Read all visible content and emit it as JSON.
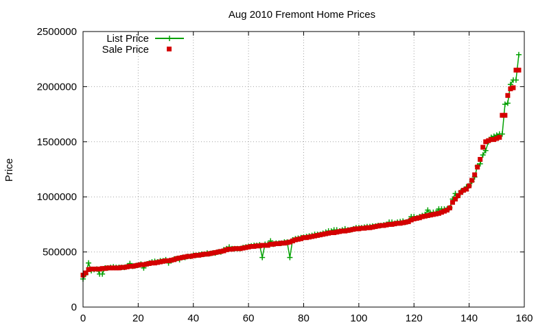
{
  "chart_data": {
    "type": "line",
    "title": "Aug 2010 Fremont Home Prices",
    "xlabel": "",
    "ylabel": "Price",
    "xlim": [
      0,
      160
    ],
    "ylim": [
      0,
      2500000
    ],
    "x_ticks": [
      0,
      20,
      40,
      60,
      80,
      100,
      120,
      140,
      160
    ],
    "y_ticks": [
      0,
      500000,
      1000000,
      1500000,
      2000000,
      2500000
    ],
    "grid": true,
    "legend_position": "top-left",
    "series": [
      {
        "name": "List Price",
        "style": "line-with-plus",
        "color": "#00a000",
        "x": [
          0,
          1,
          2,
          3,
          4,
          5,
          6,
          7,
          8,
          9,
          10,
          11,
          12,
          13,
          14,
          15,
          16,
          17,
          18,
          19,
          20,
          21,
          22,
          23,
          24,
          25,
          26,
          27,
          28,
          29,
          30,
          31,
          32,
          33,
          34,
          35,
          36,
          37,
          38,
          39,
          40,
          41,
          42,
          43,
          44,
          45,
          46,
          47,
          48,
          49,
          50,
          51,
          52,
          53,
          54,
          55,
          56,
          57,
          58,
          59,
          60,
          61,
          62,
          63,
          64,
          65,
          66,
          67,
          68,
          69,
          70,
          71,
          72,
          73,
          74,
          75,
          76,
          77,
          78,
          79,
          80,
          81,
          82,
          83,
          84,
          85,
          86,
          87,
          88,
          89,
          90,
          91,
          92,
          93,
          94,
          95,
          96,
          97,
          98,
          99,
          100,
          101,
          102,
          103,
          104,
          105,
          106,
          107,
          108,
          109,
          110,
          111,
          112,
          113,
          114,
          115,
          116,
          117,
          118,
          119,
          120,
          121,
          122,
          123,
          124,
          125,
          126,
          127,
          128,
          129,
          130,
          131,
          132,
          133,
          134,
          135,
          136,
          137,
          138,
          139,
          140,
          141,
          142,
          143,
          144,
          145,
          146,
          147,
          148,
          149,
          150,
          151,
          152,
          153,
          154,
          155,
          156,
          157,
          158
        ],
        "values": [
          255000,
          300000,
          400000,
          330000,
          340000,
          345000,
          300000,
          300000,
          355000,
          355000,
          360000,
          365000,
          360000,
          360000,
          360000,
          360000,
          370000,
          395000,
          370000,
          375000,
          380000,
          390000,
          355000,
          390000,
          400000,
          410000,
          415000,
          410000,
          420000,
          420000,
          430000,
          400000,
          420000,
          435000,
          440000,
          430000,
          450000,
          450000,
          460000,
          460000,
          470000,
          470000,
          475000,
          480000,
          480000,
          490000,
          485000,
          490000,
          490000,
          500000,
          500000,
          520000,
          530000,
          545000,
          530000,
          530000,
          530000,
          530000,
          540000,
          545000,
          550000,
          555000,
          560000,
          560000,
          565000,
          450000,
          570000,
          570000,
          600000,
          570000,
          580000,
          580000,
          580000,
          590000,
          590000,
          450000,
          610000,
          620000,
          625000,
          630000,
          635000,
          640000,
          645000,
          650000,
          660000,
          660000,
          660000,
          670000,
          680000,
          690000,
          690000,
          700000,
          700000,
          690000,
          700000,
          710000,
          700000,
          700000,
          710000,
          720000,
          720000,
          720000,
          725000,
          730000,
          730000,
          735000,
          735000,
          740000,
          740000,
          745000,
          750000,
          770000,
          770000,
          760000,
          770000,
          775000,
          780000,
          770000,
          780000,
          820000,
          820000,
          810000,
          820000,
          830000,
          840000,
          880000,
          850000,
          860000,
          860000,
          890000,
          890000,
          890000,
          890000,
          900000,
          980000,
          1030000,
          1010000,
          1050000,
          1060000,
          1090000,
          1100000,
          1140000,
          1180000,
          1280000,
          1300000,
          1380000,
          1420000,
          1500000,
          1540000,
          1550000,
          1560000,
          1570000,
          1570000,
          1840000,
          1850000,
          2020000,
          2060000,
          2060000,
          2290000
        ]
      },
      {
        "name": "Sale Price",
        "style": "squares",
        "color": "#d40000",
        "x": [
          0,
          1,
          2,
          3,
          4,
          5,
          6,
          7,
          8,
          9,
          10,
          11,
          12,
          13,
          14,
          15,
          16,
          17,
          18,
          19,
          20,
          21,
          22,
          23,
          24,
          25,
          26,
          27,
          28,
          29,
          30,
          31,
          32,
          33,
          34,
          35,
          36,
          37,
          38,
          39,
          40,
          41,
          42,
          43,
          44,
          45,
          46,
          47,
          48,
          49,
          50,
          51,
          52,
          53,
          54,
          55,
          56,
          57,
          58,
          59,
          60,
          61,
          62,
          63,
          64,
          65,
          66,
          67,
          68,
          69,
          70,
          71,
          72,
          73,
          74,
          75,
          76,
          77,
          78,
          79,
          80,
          81,
          82,
          83,
          84,
          85,
          86,
          87,
          88,
          89,
          90,
          91,
          92,
          93,
          94,
          95,
          96,
          97,
          98,
          99,
          100,
          101,
          102,
          103,
          104,
          105,
          106,
          107,
          108,
          109,
          110,
          111,
          112,
          113,
          114,
          115,
          116,
          117,
          118,
          119,
          120,
          121,
          122,
          123,
          124,
          125,
          126,
          127,
          128,
          129,
          130,
          131,
          132,
          133,
          134,
          135,
          136,
          137,
          138,
          139,
          140,
          141,
          142,
          143,
          144,
          145,
          146,
          147,
          148,
          149,
          150,
          151,
          152,
          153,
          154,
          155,
          156,
          157,
          158
        ],
        "values": [
          290000,
          310000,
          340000,
          345000,
          345000,
          345000,
          345000,
          350000,
          350000,
          355000,
          355000,
          355000,
          355000,
          355000,
          360000,
          360000,
          365000,
          370000,
          370000,
          375000,
          380000,
          385000,
          385000,
          390000,
          395000,
          400000,
          400000,
          405000,
          410000,
          415000,
          420000,
          420000,
          425000,
          430000,
          440000,
          445000,
          450000,
          455000,
          460000,
          460000,
          465000,
          470000,
          470000,
          475000,
          480000,
          480000,
          485000,
          490000,
          495000,
          500000,
          505000,
          510000,
          520000,
          525000,
          525000,
          530000,
          530000,
          530000,
          535000,
          540000,
          545000,
          550000,
          550000,
          555000,
          555000,
          560000,
          560000,
          560000,
          570000,
          570000,
          575000,
          575000,
          580000,
          580000,
          585000,
          590000,
          600000,
          610000,
          615000,
          620000,
          630000,
          630000,
          635000,
          640000,
          645000,
          650000,
          655000,
          660000,
          665000,
          670000,
          675000,
          675000,
          680000,
          685000,
          690000,
          690000,
          695000,
          700000,
          705000,
          710000,
          710000,
          715000,
          715000,
          720000,
          720000,
          725000,
          730000,
          735000,
          740000,
          740000,
          745000,
          750000,
          750000,
          755000,
          760000,
          760000,
          765000,
          770000,
          775000,
          790000,
          800000,
          805000,
          810000,
          820000,
          825000,
          830000,
          835000,
          840000,
          845000,
          850000,
          860000,
          870000,
          880000,
          900000,
          950000,
          980000,
          1010000,
          1040000,
          1060000,
          1070000,
          1100000,
          1150000,
          1200000,
          1270000,
          1340000,
          1450000,
          1500000,
          1510000,
          1520000,
          1520000,
          1530000,
          1540000,
          1740000,
          1740000,
          1920000,
          1980000,
          1990000,
          2150000,
          2150000
        ]
      }
    ]
  }
}
